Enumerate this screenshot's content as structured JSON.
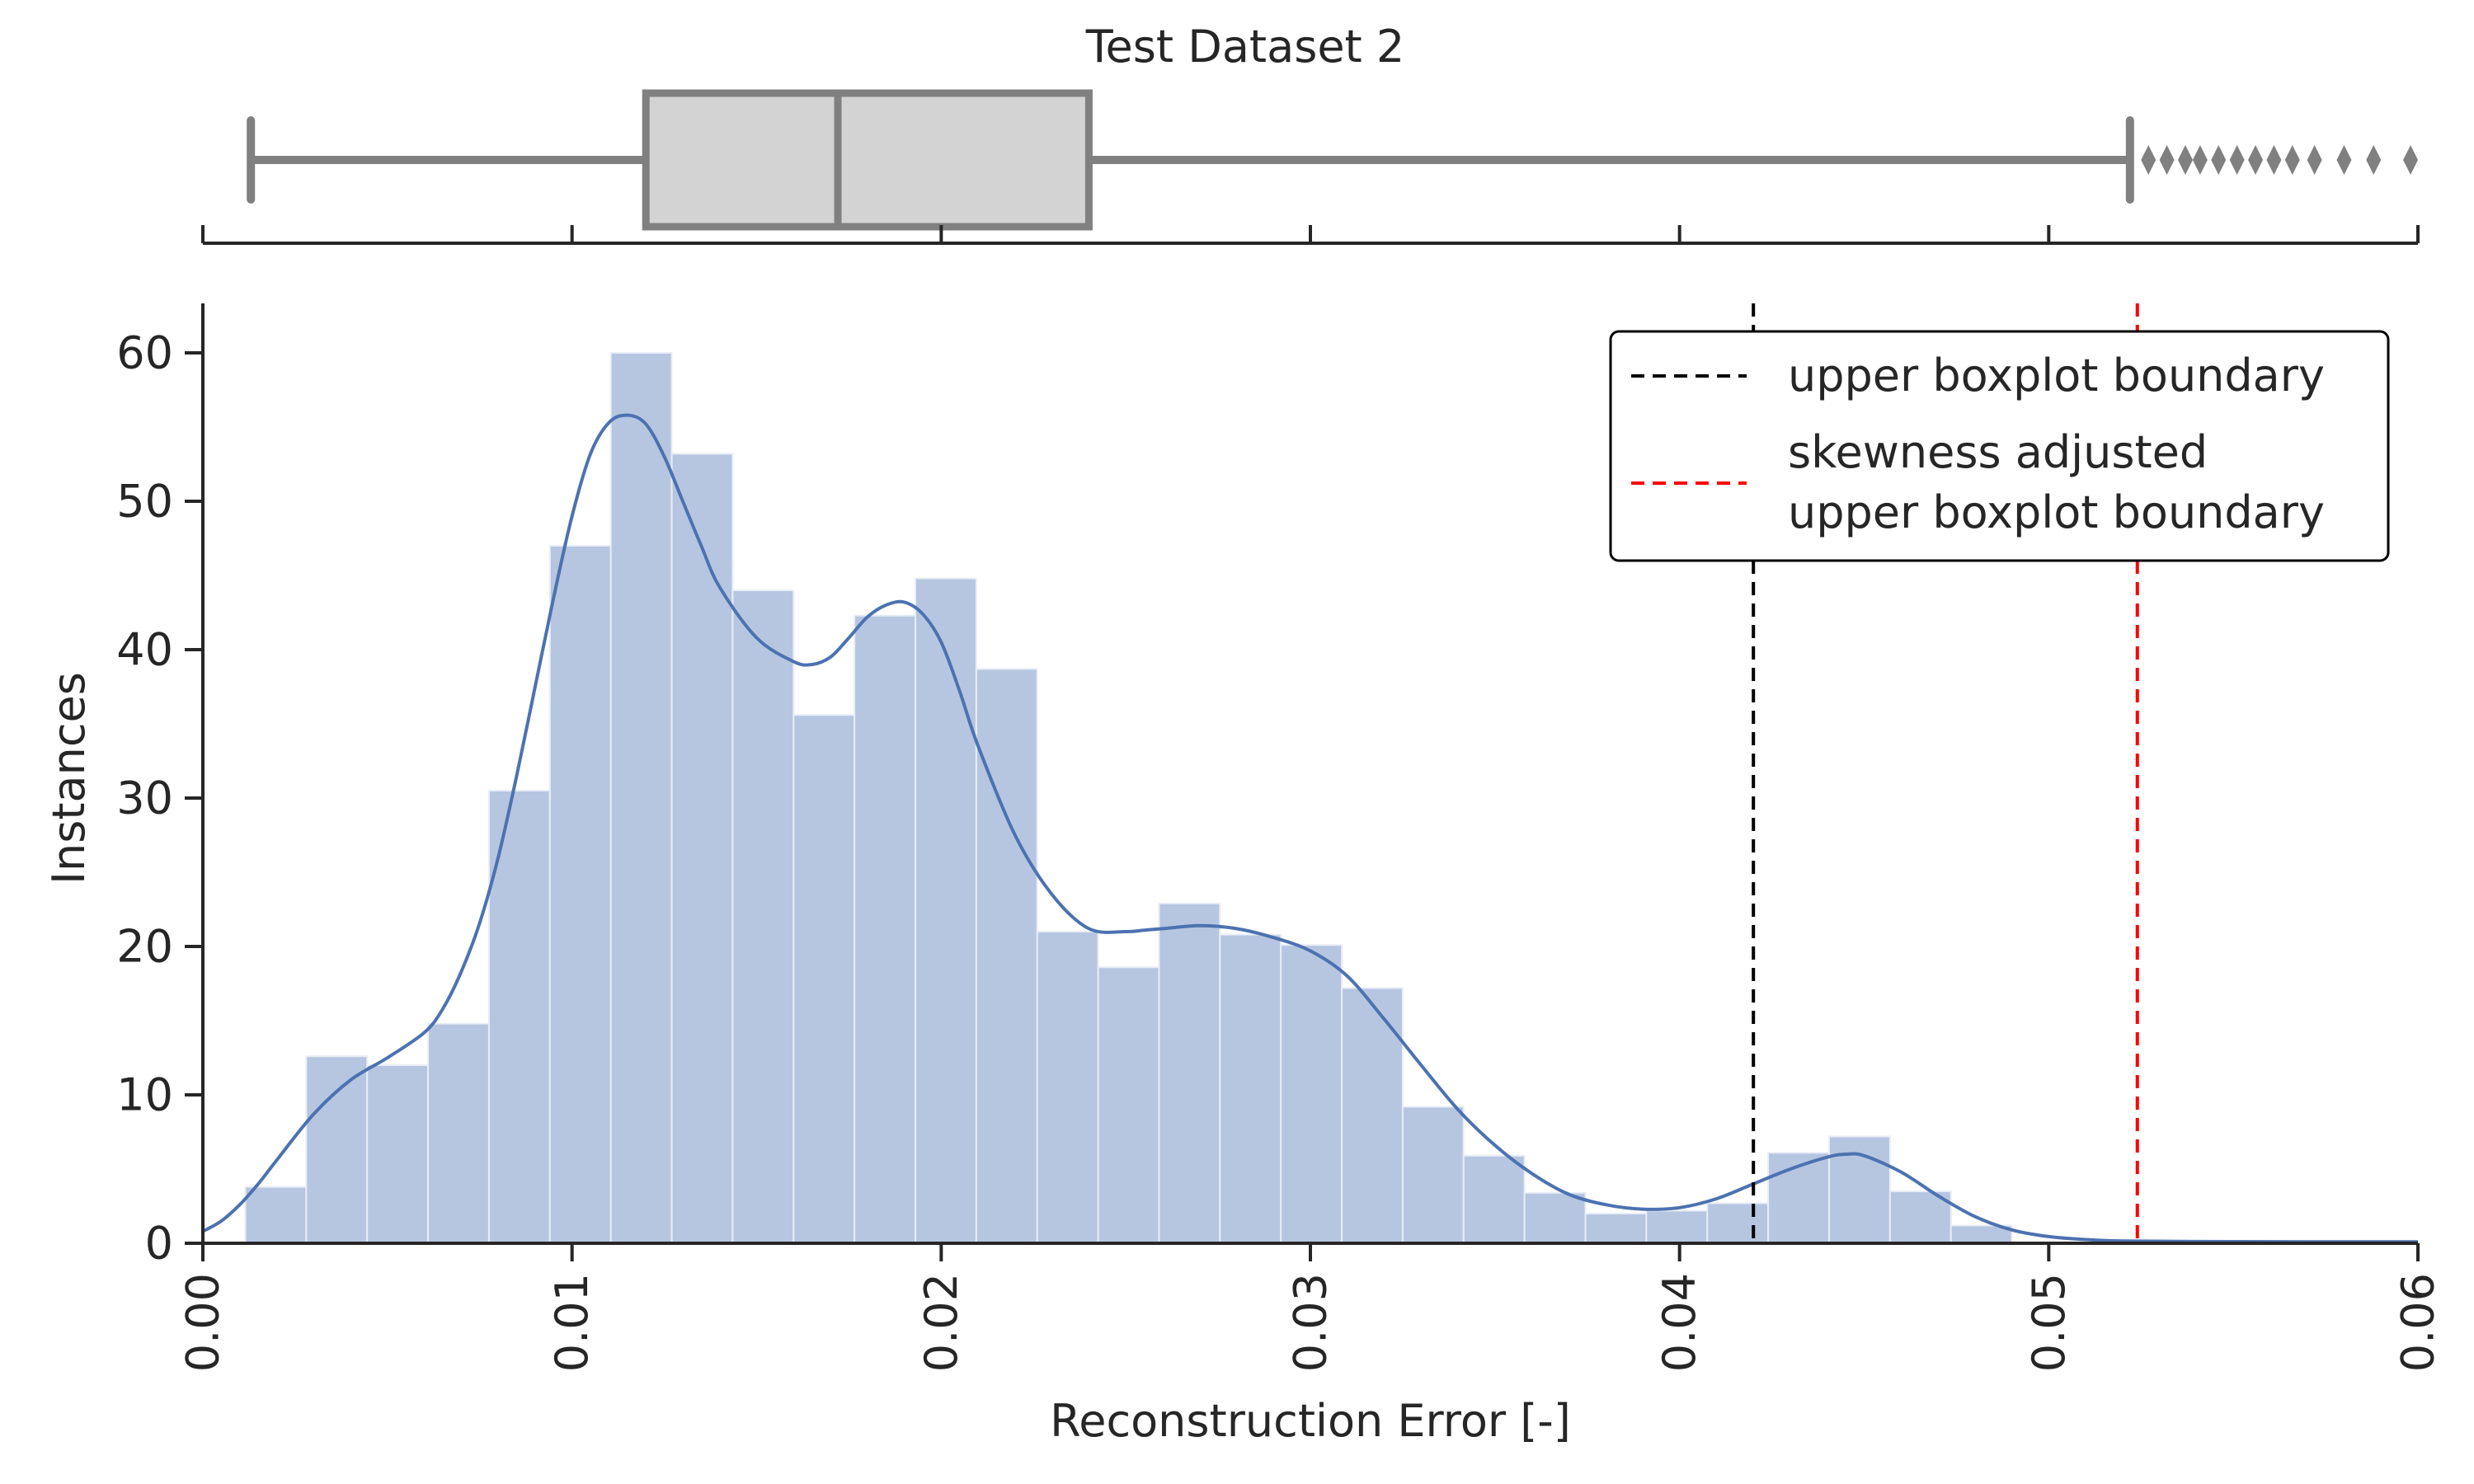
{
  "chart_data": [
    {
      "type": "box",
      "title": "Test Dataset 2",
      "whisker_low": 0.0013,
      "q1": 0.012,
      "median": 0.0172,
      "q3": 0.024,
      "whisker_high": 0.0522,
      "outliers": [
        0.0527,
        0.0532,
        0.0537,
        0.0541,
        0.0546,
        0.0551,
        0.0556,
        0.0561,
        0.0566,
        0.0572,
        0.058,
        0.0588,
        0.0598
      ],
      "xlim": [
        0,
        0.06
      ],
      "colors": {
        "box_fill": "#d3d3d3",
        "box_line": "#808080"
      }
    },
    {
      "type": "histogram",
      "xlabel": "Reconstruction Error [-]",
      "ylabel": "Instances",
      "xlim": [
        0,
        0.06
      ],
      "ylim": [
        0,
        63
      ],
      "xticks": [
        "0.00",
        "0.01",
        "0.02",
        "0.03",
        "0.04",
        "0.05",
        "0.06"
      ],
      "yticks": [
        "0",
        "10",
        "20",
        "30",
        "40",
        "50",
        "60"
      ],
      "bin_edges": [
        0.00115,
        0.0028,
        0.00445,
        0.0061,
        0.00775,
        0.0094,
        0.01105,
        0.0127,
        0.01435,
        0.016,
        0.01765,
        0.0193,
        0.02095,
        0.0226,
        0.02425,
        0.0259,
        0.02755,
        0.0292,
        0.03085,
        0.0325,
        0.03415,
        0.0358,
        0.03745,
        0.0391,
        0.04075,
        0.0424,
        0.04405,
        0.0457,
        0.04735,
        0.049
      ],
      "values": [
        3.8,
        12.6,
        12.0,
        14.8,
        30.5,
        47.0,
        60.0,
        53.2,
        44.0,
        35.6,
        42.3,
        44.8,
        38.7,
        21.0,
        18.6,
        22.9,
        20.8,
        20.1,
        17.2,
        9.2,
        5.9,
        3.4,
        2.0,
        2.2,
        2.7,
        6.1,
        7.2,
        3.5,
        1.2
      ],
      "kde": {
        "x": [
          0.0,
          0.0005,
          0.001,
          0.0015,
          0.002,
          0.003,
          0.004,
          0.005,
          0.006,
          0.0065,
          0.007,
          0.0075,
          0.008,
          0.0085,
          0.009,
          0.0095,
          0.01,
          0.0105,
          0.011,
          0.0115,
          0.012,
          0.0125,
          0.013,
          0.0135,
          0.014,
          0.015,
          0.016,
          0.0165,
          0.017,
          0.0175,
          0.018,
          0.0185,
          0.019,
          0.0195,
          0.02,
          0.0205,
          0.021,
          0.022,
          0.023,
          0.024,
          0.025,
          0.0255,
          0.026,
          0.027,
          0.028,
          0.029,
          0.03,
          0.031,
          0.032,
          0.033,
          0.034,
          0.035,
          0.036,
          0.037,
          0.038,
          0.039,
          0.04,
          0.041,
          0.042,
          0.043,
          0.044,
          0.0445,
          0.045,
          0.046,
          0.047,
          0.048,
          0.049,
          0.05,
          0.051,
          0.052,
          0.054,
          0.057,
          0.06
        ],
        "y": [
          0.8,
          1.5,
          2.6,
          4.0,
          5.6,
          8.7,
          11.0,
          12.5,
          14.2,
          15.8,
          18.3,
          21.6,
          26.0,
          31.5,
          37.5,
          43.5,
          49.0,
          53.2,
          55.3,
          55.8,
          55.2,
          53.0,
          50.0,
          47.0,
          44.2,
          40.8,
          39.2,
          39.0,
          39.5,
          40.8,
          42.2,
          43.0,
          43.2,
          42.4,
          40.5,
          37.2,
          33.5,
          27.5,
          23.5,
          21.2,
          21.0,
          21.1,
          21.2,
          21.4,
          21.2,
          20.6,
          19.7,
          18.0,
          15.1,
          12.0,
          9.0,
          6.6,
          4.7,
          3.3,
          2.6,
          2.3,
          2.4,
          3.0,
          4.0,
          5.0,
          5.8,
          6.0,
          5.9,
          4.8,
          3.2,
          1.8,
          0.9,
          0.45,
          0.25,
          0.15,
          0.12,
          0.1,
          0.1
        ]
      },
      "vlines": [
        {
          "x": 0.042,
          "color": "#000000",
          "label": "upper boxplot boundary"
        },
        {
          "x": 0.0524,
          "color": "#ff0000",
          "label_line1": "skewness adjusted",
          "label_line2": "upper boxplot boundary"
        }
      ],
      "legend_position": "top-right",
      "colors": {
        "bar_fill": "#b6c6e1",
        "bar_edge": "#e8edf6",
        "kde_line": "#4c72b0",
        "axis": "#262626"
      }
    }
  ]
}
